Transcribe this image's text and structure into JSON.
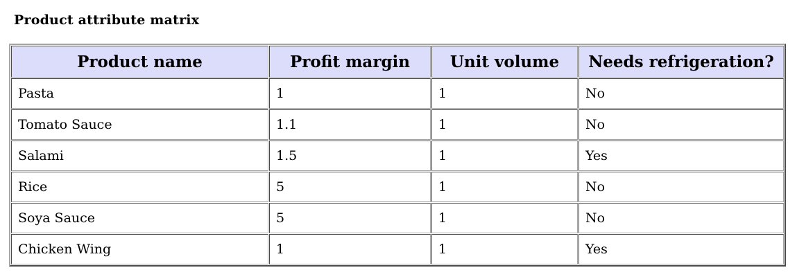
{
  "caption": "Product attribute matrix",
  "table": {
    "headers": [
      "Product name",
      "Profit margin",
      "Unit volume",
      "Needs refrigeration?"
    ],
    "rows": [
      [
        "Pasta",
        "1",
        "1",
        "No"
      ],
      [
        "Tomato Sauce",
        "1.1",
        "1",
        "No"
      ],
      [
        "Salami",
        "1.5",
        "1",
        "Yes"
      ],
      [
        "Rice",
        "5",
        "1",
        "No"
      ],
      [
        "Soya Sauce",
        "5",
        "1",
        "No"
      ],
      [
        "Chicken Wing",
        "1",
        "1",
        "Yes"
      ]
    ]
  },
  "colors": {
    "header_background": "#dcdcfb",
    "border_dark": "#4a4a4a",
    "border_light": "#a6a6a6"
  }
}
